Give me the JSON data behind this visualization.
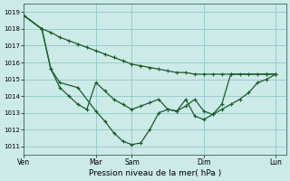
{
  "bg_color": "#cceae7",
  "grid_color": "#99cccc",
  "line_color": "#1a5c2a",
  "xlabel": "Pression niveau de la mer( hPa )",
  "ylim": [
    1010.5,
    1019.5
  ],
  "yticks": [
    1011,
    1012,
    1013,
    1014,
    1015,
    1016,
    1017,
    1018,
    1019
  ],
  "xtick_labels": [
    "Ven",
    "Mar",
    "Sam",
    "Dim",
    "Lun"
  ],
  "xtick_positions": [
    0,
    48,
    72,
    120,
    168
  ],
  "vline_positions": [
    0,
    48,
    72,
    120,
    168
  ],
  "xlim": [
    0,
    175
  ],
  "series1_x": [
    0,
    12,
    18,
    24,
    30,
    36,
    42,
    48,
    54,
    60,
    66,
    72,
    78,
    84,
    90,
    96,
    102,
    108,
    114,
    120,
    126,
    132,
    138,
    144,
    150,
    156,
    162,
    168
  ],
  "series1_y": [
    1018.8,
    1018.0,
    1017.8,
    1017.5,
    1017.3,
    1017.1,
    1016.9,
    1016.7,
    1016.5,
    1016.3,
    1016.1,
    1015.9,
    1015.8,
    1015.7,
    1015.6,
    1015.5,
    1015.4,
    1015.4,
    1015.3,
    1015.3,
    1015.3,
    1015.3,
    1015.3,
    1015.3,
    1015.3,
    1015.3,
    1015.3,
    1015.3
  ],
  "series2_x": [
    0,
    12,
    18,
    24,
    30,
    36,
    42,
    48,
    54,
    60,
    66,
    72,
    78,
    84,
    90,
    96,
    102,
    108,
    114,
    120,
    126,
    132,
    138,
    144,
    150,
    156,
    162,
    168
  ],
  "series2_y": [
    1018.8,
    1018.0,
    1015.6,
    1014.5,
    1014.0,
    1013.5,
    1013.2,
    1014.8,
    1014.3,
    1013.8,
    1013.5,
    1013.2,
    1013.4,
    1013.6,
    1013.8,
    1013.2,
    1013.1,
    1013.4,
    1013.8,
    1013.1,
    1012.9,
    1013.2,
    1013.5,
    1013.8,
    1014.2,
    1014.8,
    1015.0,
    1015.3
  ],
  "series3_x": [
    0,
    12,
    18,
    24,
    36,
    48,
    54,
    60,
    66,
    72,
    78,
    84,
    90,
    96,
    102,
    108,
    114,
    120,
    126,
    132,
    138,
    162,
    168
  ],
  "series3_y": [
    1018.8,
    1018.0,
    1015.6,
    1014.8,
    1014.5,
    1013.1,
    1012.5,
    1011.8,
    1011.3,
    1011.1,
    1011.2,
    1012.0,
    1013.0,
    1013.2,
    1013.1,
    1013.8,
    1012.8,
    1012.6,
    1012.9,
    1013.5,
    1015.3,
    1015.3,
    1015.3
  ]
}
